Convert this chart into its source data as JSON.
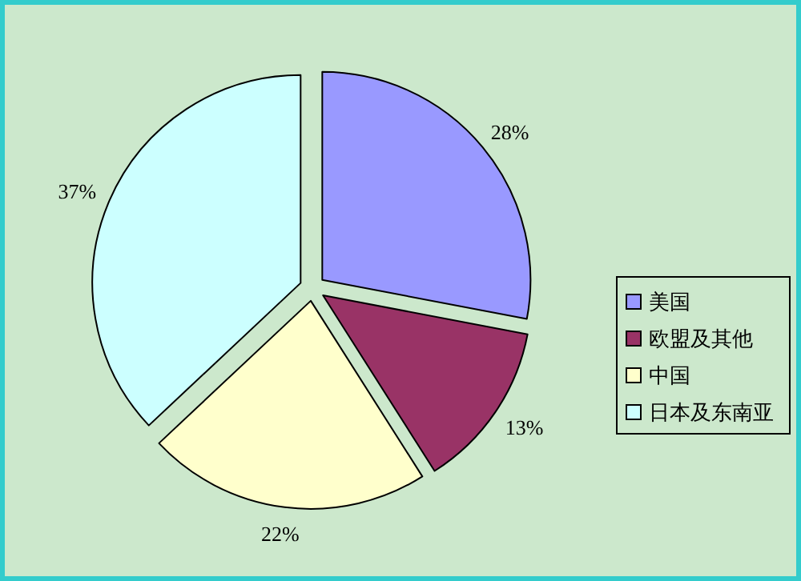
{
  "chart_data": {
    "type": "pie",
    "categories": [
      "美国",
      "欧盟及其他",
      "中国",
      "日本及东南亚"
    ],
    "values": [
      28,
      13,
      22,
      37
    ],
    "value_labels": [
      "28%",
      "13%",
      "22%",
      "37%"
    ],
    "colors": [
      "#9999ff",
      "#993366",
      "#ffffcc",
      "#ccffff"
    ],
    "legend": "right"
  }
}
